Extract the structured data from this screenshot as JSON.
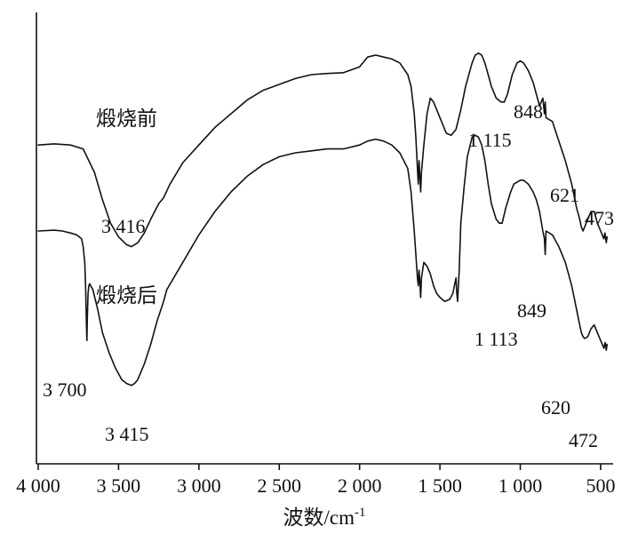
{
  "chart_data": {
    "type": "line",
    "xlabel": "波数/cm",
    "xlabel_sup": "-1",
    "ylabel": "",
    "xlim": [
      4000,
      450
    ],
    "x_reversed": true,
    "x_ticks": [
      {
        "value": 4000,
        "label": "4 000"
      },
      {
        "value": 3500,
        "label": "3 500"
      },
      {
        "value": 3000,
        "label": "3 000"
      },
      {
        "value": 2500,
        "label": "2 500"
      },
      {
        "value": 2000,
        "label": "2 000"
      },
      {
        "value": 1500,
        "label": "1 500"
      },
      {
        "value": 1000,
        "label": "1 000"
      },
      {
        "value": 500,
        "label": "500"
      }
    ],
    "ylim": [
      0,
      100
    ],
    "grid": false,
    "series": [
      {
        "name": "煅烧前",
        "x": [
          4000,
          3900,
          3800,
          3720,
          3650,
          3600,
          3550,
          3500,
          3450,
          3420,
          3380,
          3340,
          3300,
          3250,
          3220,
          3180,
          3100,
          3000,
          2900,
          2800,
          2700,
          2600,
          2500,
          2400,
          2300,
          2200,
          2100,
          2000,
          1980,
          1950,
          1900,
          1850,
          1800,
          1750,
          1700,
          1680,
          1660,
          1650,
          1640,
          1635,
          1630,
          1625,
          1620,
          1615,
          1600,
          1580,
          1560,
          1540,
          1500,
          1460,
          1430,
          1400,
          1370,
          1340,
          1300,
          1280,
          1260,
          1240,
          1220,
          1200,
          1180,
          1150,
          1120,
          1100,
          1080,
          1050,
          1020,
          1000,
          980,
          950,
          920,
          900,
          880,
          860,
          850,
          845,
          840,
          800,
          760,
          720,
          680,
          650,
          630,
          620,
          610,
          600,
          580,
          560,
          540,
          520,
          500,
          490,
          480,
          473,
          465,
          460
        ],
        "values": [
          72.0,
          72.3,
          72.0,
          71.0,
          65.0,
          58.0,
          52.0,
          48.5,
          46.5,
          46.0,
          47.0,
          49.5,
          53.0,
          57.0,
          58.5,
          62.0,
          67.5,
          72.0,
          76.5,
          80.0,
          83.5,
          86.0,
          87.5,
          89.0,
          90.0,
          90.3,
          90.5,
          92.0,
          93.0,
          94.5,
          95.0,
          94.5,
          94.0,
          93.0,
          90.0,
          87.0,
          80.0,
          74.0,
          66.0,
          62.0,
          68.0,
          64.0,
          60.0,
          65.0,
          72.0,
          80.0,
          84.0,
          83.0,
          79.0,
          75.0,
          74.5,
          76.0,
          81.0,
          87.0,
          93.0,
          95.0,
          95.5,
          95.0,
          93.0,
          90.0,
          87.0,
          84.0,
          83.0,
          83.0,
          85.0,
          90.0,
          93.0,
          93.5,
          93.0,
          91.0,
          88.0,
          85.0,
          82.0,
          84.0,
          80.0,
          83.0,
          79.0,
          78.0,
          73.0,
          68.0,
          62.0,
          56.0,
          53.0,
          51.0,
          50.0,
          51.0,
          53.0,
          55.0,
          55.0,
          52.0,
          50.0,
          49.0,
          48.0,
          49.5,
          47.0,
          48.5
        ]
      },
      {
        "name": "煅烧后",
        "x": [
          4000,
          3900,
          3850,
          3800,
          3760,
          3730,
          3720,
          3710,
          3705,
          3700,
          3697,
          3694,
          3690,
          3685,
          3680,
          3660,
          3630,
          3600,
          3560,
          3520,
          3480,
          3450,
          3420,
          3400,
          3380,
          3340,
          3300,
          3260,
          3220,
          3200,
          3100,
          3000,
          2900,
          2800,
          2700,
          2600,
          2500,
          2400,
          2300,
          2200,
          2100,
          2000,
          1950,
          1900,
          1850,
          1800,
          1750,
          1700,
          1680,
          1660,
          1650,
          1640,
          1635,
          1630,
          1625,
          1620,
          1615,
          1600,
          1580,
          1560,
          1540,
          1520,
          1500,
          1470,
          1440,
          1420,
          1410,
          1400,
          1395,
          1390,
          1385,
          1380,
          1370,
          1350,
          1330,
          1300,
          1280,
          1260,
          1240,
          1220,
          1200,
          1180,
          1150,
          1130,
          1113,
          1090,
          1060,
          1040,
          1000,
          980,
          950,
          920,
          900,
          880,
          860,
          850,
          845,
          840,
          800,
          760,
          720,
          680,
          660,
          640,
          630,
          620,
          610,
          600,
          580,
          560,
          540,
          520,
          510,
          500,
          490,
          480,
          472,
          465,
          460
        ],
        "values": [
          50.0,
          50.2,
          50.0,
          49.5,
          49.0,
          48.0,
          46.0,
          42.0,
          36.0,
          26.0,
          22.0,
          28.0,
          34.0,
          36.0,
          36.5,
          35.0,
          30.0,
          24.0,
          19.0,
          15.0,
          12.0,
          11.0,
          10.5,
          11.0,
          12.0,
          16.0,
          21.0,
          27.0,
          32.0,
          35.0,
          42.0,
          49.0,
          55.0,
          60.0,
          64.0,
          67.0,
          69.0,
          70.0,
          70.5,
          71.0,
          71.0,
          72.0,
          73.0,
          73.5,
          73.0,
          72.0,
          70.0,
          66.0,
          60.0,
          50.0,
          44.0,
          38.0,
          36.0,
          40.0,
          37.0,
          33.0,
          38.0,
          42.0,
          41.0,
          39.0,
          36.0,
          34.0,
          33.0,
          32.0,
          32.5,
          34.0,
          36.0,
          38.0,
          34.0,
          32.0,
          36.0,
          40.0,
          52.0,
          61.0,
          69.0,
          74.0,
          74.5,
          74.0,
          72.0,
          68.0,
          62.0,
          57.0,
          53.0,
          52.0,
          52.0,
          56.0,
          60.0,
          62.0,
          63.0,
          63.0,
          62.0,
          60.0,
          58.0,
          55.0,
          50.0,
          48.0,
          44.0,
          50.0,
          49.0,
          46.0,
          42.0,
          36.0,
          32.0,
          28.0,
          26.0,
          24.0,
          23.0,
          22.5,
          23.0,
          25.0,
          26.0,
          24.0,
          23.0,
          22.0,
          21.0,
          20.0,
          21.5,
          19.5,
          21.0
        ]
      }
    ],
    "annotations": [
      {
        "series": 0,
        "text": "3 416"
      },
      {
        "series": 0,
        "text": "1 115"
      },
      {
        "series": 0,
        "text": "848"
      },
      {
        "series": 0,
        "text": "621"
      },
      {
        "series": 0,
        "text": "473"
      },
      {
        "series": 1,
        "text": "3 700"
      },
      {
        "series": 1,
        "text": "3 415"
      },
      {
        "series": 1,
        "text": "1 113"
      },
      {
        "series": 1,
        "text": "849"
      },
      {
        "series": 1,
        "text": "620"
      },
      {
        "series": 1,
        "text": "472"
      }
    ]
  }
}
